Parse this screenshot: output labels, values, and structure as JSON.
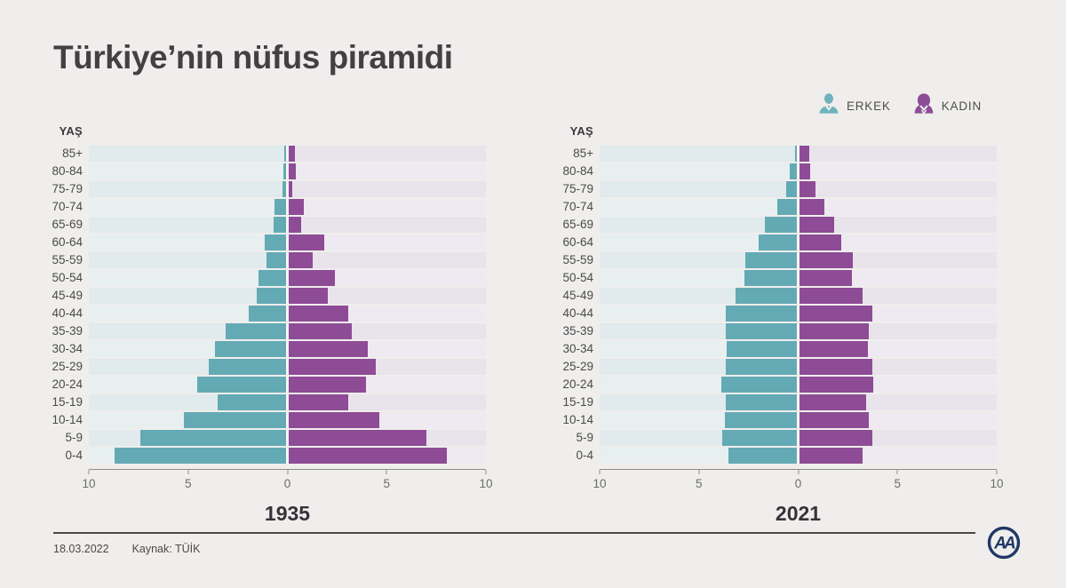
{
  "title": "Türkiye’nin nüfus piramidi",
  "legend": {
    "male_label": "ERKEK",
    "female_label": "KADIN",
    "male_icon": "man-icon",
    "female_icon": "woman-icon"
  },
  "colors": {
    "male": "#64aab4",
    "female": "#8e4b96",
    "stripe_left": "#e1eaec",
    "stripe_left_alt": "#e7eff0",
    "stripe_right": "#e9e3ec",
    "stripe_right_alt": "#efe9f1",
    "logo_navy": "#203867"
  },
  "chart_data": [
    {
      "type": "bar",
      "subtype": "population-pyramid",
      "year": "1935",
      "ylabel": "YAŞ",
      "xlim": [
        0,
        10
      ],
      "x_tick_labels": [
        "10",
        "5",
        "0",
        "5",
        "10"
      ],
      "age_groups": [
        "85+",
        "80-84",
        "75-79",
        "70-74",
        "65-69",
        "60-64",
        "55-59",
        "50-54",
        "45-49",
        "40-44",
        "35-39",
        "30-34",
        "25-29",
        "20-24",
        "15-19",
        "10-14",
        "5-9",
        "0-4"
      ],
      "series": [
        {
          "name": "ERKEK",
          "values": [
            0.1,
            0.15,
            0.2,
            0.6,
            0.65,
            1.1,
            1.0,
            1.4,
            1.5,
            1.9,
            3.05,
            3.6,
            3.9,
            4.5,
            3.45,
            5.2,
            7.4,
            8.7
          ]
        },
        {
          "name": "KADIN",
          "values": [
            0.3,
            0.35,
            0.2,
            0.75,
            0.65,
            1.8,
            1.2,
            2.35,
            2.0,
            3.0,
            3.2,
            4.0,
            4.4,
            3.9,
            3.0,
            4.6,
            7.0,
            8.0
          ]
        }
      ]
    },
    {
      "type": "bar",
      "subtype": "population-pyramid",
      "year": "2021",
      "ylabel": "YAŞ",
      "xlim": [
        0,
        10
      ],
      "x_tick_labels": [
        "10",
        "5",
        "0",
        "5",
        "10"
      ],
      "age_groups": [
        "85+",
        "80-84",
        "75-79",
        "70-74",
        "65-69",
        "60-64",
        "55-59",
        "50-54",
        "45-49",
        "40-44",
        "35-39",
        "30-34",
        "25-29",
        "20-24",
        "15-19",
        "10-14",
        "5-9",
        "0-4"
      ],
      "series": [
        {
          "name": "ERKEK",
          "values": [
            0.1,
            0.35,
            0.55,
            1.0,
            1.6,
            1.95,
            2.6,
            2.65,
            3.1,
            3.6,
            3.6,
            3.55,
            3.6,
            3.85,
            3.6,
            3.65,
            3.8,
            3.45
          ]
        },
        {
          "name": "KADIN",
          "values": [
            0.5,
            0.55,
            0.8,
            1.25,
            1.75,
            2.1,
            2.7,
            2.65,
            3.2,
            3.7,
            3.5,
            3.45,
            3.7,
            3.75,
            3.4,
            3.5,
            3.7,
            3.2
          ]
        }
      ]
    }
  ],
  "footer": {
    "date": "18.03.2022",
    "source": "Kaynak: TÜİK",
    "logo_text": "AA"
  }
}
